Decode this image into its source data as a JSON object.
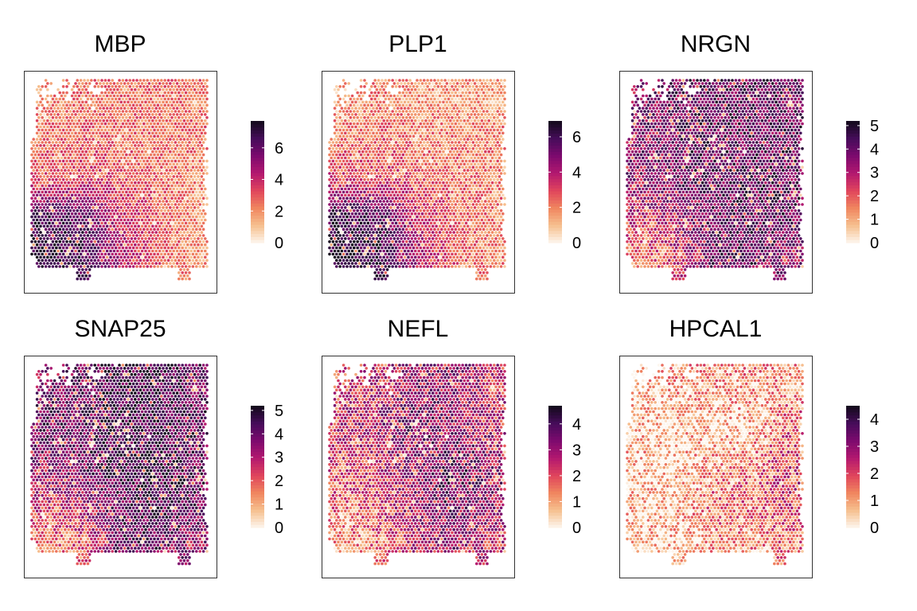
{
  "chart_data": [
    {
      "type": "heatmap",
      "title": "MBP",
      "legend_ticks": [
        0,
        2,
        4,
        6
      ],
      "legend_max": 7.7,
      "grid": [
        [
          2,
          2.5,
          2.5,
          2.5,
          2.5
        ],
        [
          2.5,
          3,
          2.5,
          2.5,
          2.5
        ],
        [
          3,
          3.5,
          3,
          2.5,
          2
        ],
        [
          6.5,
          6,
          4,
          3,
          2
        ],
        [
          7,
          6.5,
          4.5,
          3,
          2
        ]
      ]
    },
    {
      "type": "heatmap",
      "title": "PLP1",
      "legend_ticks": [
        0,
        2,
        4,
        6
      ],
      "legend_max": 6.9,
      "grid": [
        [
          1.5,
          2,
          1.5,
          1.5,
          1.5
        ],
        [
          2,
          2.5,
          2,
          2,
          2
        ],
        [
          3,
          3,
          2.5,
          2,
          2
        ],
        [
          6,
          5.5,
          3.5,
          2.5,
          2
        ],
        [
          6.5,
          6,
          4,
          2.5,
          2
        ]
      ]
    },
    {
      "type": "heatmap",
      "title": "NRGN",
      "legend_ticks": [
        0,
        1,
        2,
        3,
        4,
        5
      ],
      "legend_max": 5.2,
      "grid": [
        [
          3.5,
          4,
          4,
          4,
          4
        ],
        [
          3.5,
          4,
          4,
          4,
          4
        ],
        [
          3.5,
          4,
          4,
          4,
          4
        ],
        [
          2.5,
          3,
          4,
          4,
          4
        ],
        [
          1.5,
          2.5,
          4,
          4,
          3.5
        ]
      ]
    },
    {
      "type": "heatmap",
      "title": "SNAP25",
      "legend_ticks": [
        0,
        1,
        2,
        3,
        4,
        5
      ],
      "legend_max": 5.2,
      "grid": [
        [
          3.5,
          4,
          4.5,
          4.5,
          4
        ],
        [
          4,
          4,
          4.5,
          4.5,
          4
        ],
        [
          3.5,
          4,
          4.5,
          4.5,
          4
        ],
        [
          2.5,
          3,
          4,
          4.5,
          4
        ],
        [
          1.5,
          2,
          4,
          4,
          3.5
        ]
      ]
    },
    {
      "type": "heatmap",
      "title": "NEFL",
      "legend_ticks": [
        0,
        1,
        2,
        3,
        4
      ],
      "legend_max": 4.7,
      "grid": [
        [
          2,
          2.5,
          3,
          3,
          2.5
        ],
        [
          2.5,
          3,
          3.5,
          3,
          2.5
        ],
        [
          2,
          2.5,
          3,
          3.5,
          3
        ],
        [
          1.5,
          2,
          3,
          3.5,
          3
        ],
        [
          1,
          1.5,
          2.5,
          3,
          2.5
        ]
      ]
    },
    {
      "type": "heatmap",
      "title": "HPCAL1",
      "legend_ticks": [
        0,
        1,
        2,
        3,
        4
      ],
      "legend_max": 4.5,
      "grid": [
        [
          0.5,
          1,
          1,
          1,
          1
        ],
        [
          0.5,
          0.5,
          0.5,
          0.5,
          1.5
        ],
        [
          0.5,
          0.5,
          1,
          1,
          2
        ],
        [
          0.5,
          0.5,
          1.5,
          1.5,
          2
        ],
        [
          0.5,
          0.5,
          1,
          1,
          1.5
        ]
      ]
    }
  ],
  "colormap": [
    "#fdf6ee",
    "#f6c08f",
    "#f0865f",
    "#e0455c",
    "#b3186f",
    "#7d0a6e",
    "#460c5a",
    "#120a1a"
  ]
}
